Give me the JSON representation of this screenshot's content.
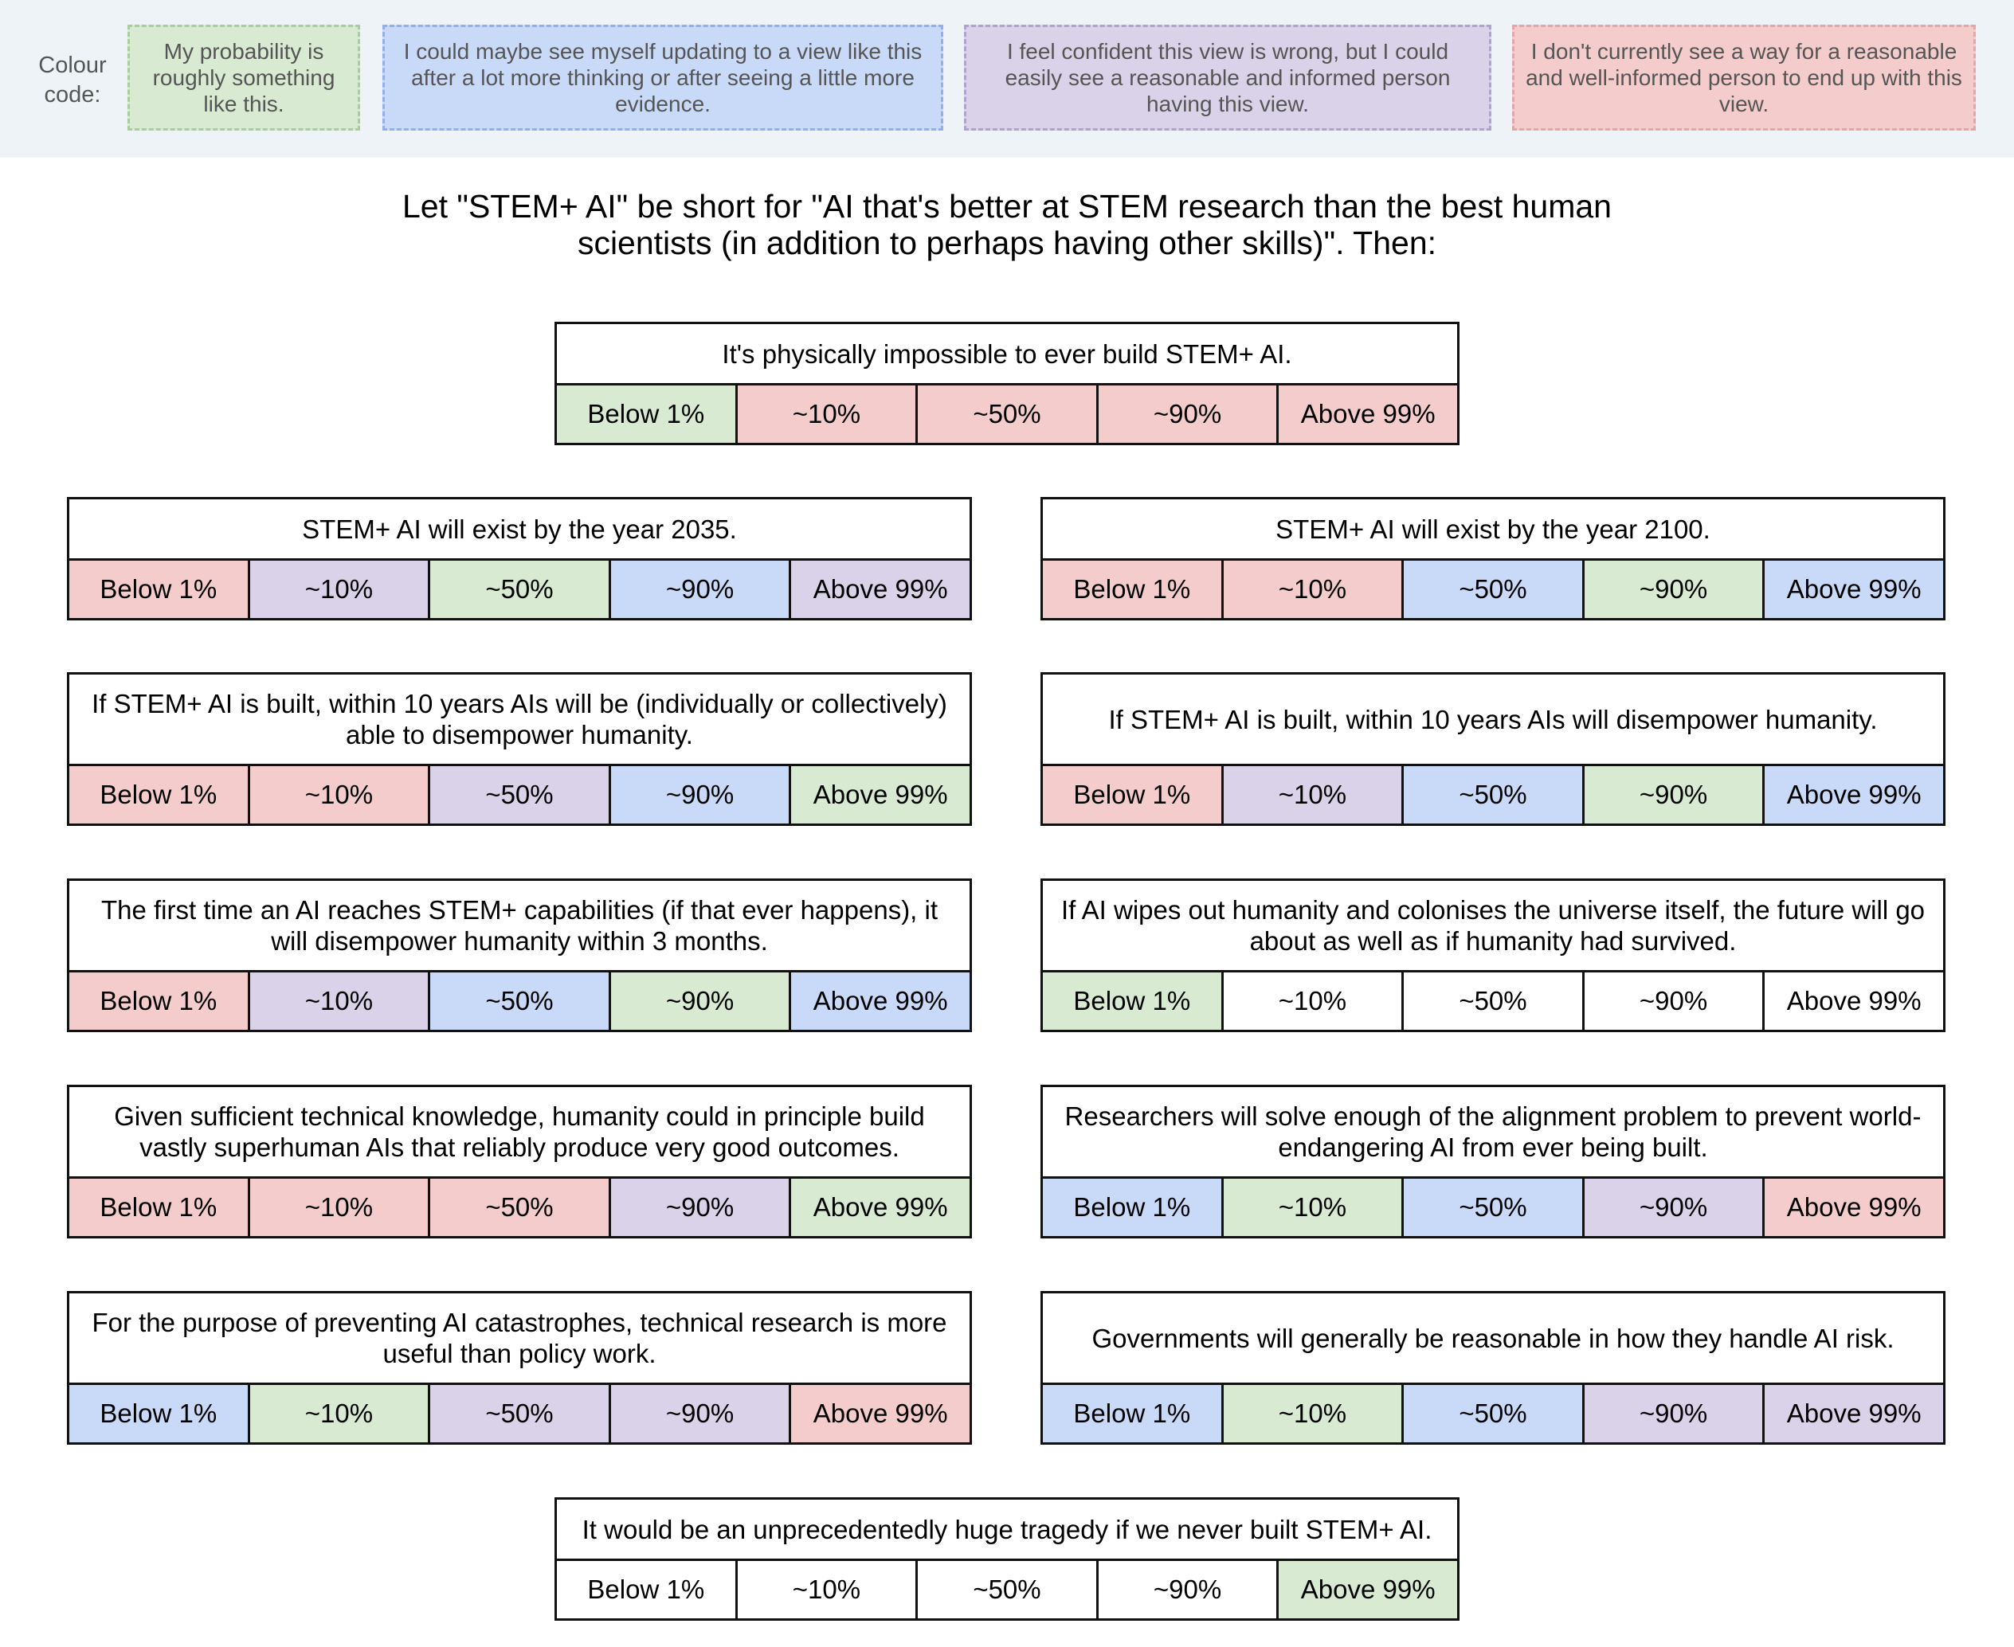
{
  "legend": {
    "title": "Colour code:",
    "items": [
      {
        "key": "green",
        "text": "My probability is roughly something like this."
      },
      {
        "key": "blue",
        "text": "I could maybe see myself updating to a view like this after a lot more thinking or after seeing a little more evidence."
      },
      {
        "key": "purple",
        "text": "I feel confident this view is wrong, but I could easily see a reasonable and informed person having this view."
      },
      {
        "key": "red",
        "text": "I don't currently see a way for a reasonable and well-informed person to end up with this view."
      }
    ]
  },
  "colors": {
    "green": "#d9ead3",
    "blue": "#c9daf8",
    "purple": "#d9d2e9",
    "red": "#f4cccc",
    "none": "#ffffff"
  },
  "intro": "Let \"STEM+ AI\" be short for \"AI that's better at STEM research than the best human scientists (in addition to perhaps having other skills)\". Then:",
  "options": [
    "Below 1%",
    "~10%",
    "~50%",
    "~90%",
    "Above 99%"
  ],
  "questions": [
    {
      "text": "It's physically impossible to ever build STEM+ AI.",
      "colors": [
        "green",
        "red",
        "red",
        "red",
        "red"
      ]
    },
    {
      "text": "STEM+ AI will exist by the year 2035.",
      "colors": [
        "red",
        "purple",
        "green",
        "blue",
        "purple"
      ]
    },
    {
      "text": "STEM+ AI will exist by the year 2100.",
      "colors": [
        "red",
        "red",
        "blue",
        "green",
        "blue"
      ]
    },
    {
      "text": "If STEM+ AI is built, within 10 years AIs will be (individually or collectively) able to disempower humanity.",
      "colors": [
        "red",
        "red",
        "purple",
        "blue",
        "green"
      ]
    },
    {
      "text": "If STEM+ AI is built, within 10 years AIs will disempower humanity.",
      "colors": [
        "red",
        "purple",
        "blue",
        "green",
        "blue"
      ]
    },
    {
      "text": "The first time an AI reaches STEM+ capabilities (if that ever happens), it will disempower humanity within 3 months.",
      "colors": [
        "red",
        "purple",
        "blue",
        "green",
        "blue"
      ]
    },
    {
      "text": "If AI wipes out humanity and colonises the universe itself, the future will go about as well as if humanity had survived.",
      "colors": [
        "green",
        "none",
        "none",
        "none",
        "none"
      ]
    },
    {
      "text": "Given sufficient technical knowledge, humanity could in principle build vastly superhuman AIs that reliably produce very good outcomes.",
      "colors": [
        "red",
        "red",
        "red",
        "purple",
        "green"
      ]
    },
    {
      "text": "Researchers will solve enough of the alignment problem to prevent world-endangering AI from ever being built.",
      "colors": [
        "blue",
        "green",
        "blue",
        "purple",
        "red"
      ]
    },
    {
      "text": "For the purpose of preventing AI catastrophes, technical research is more useful than policy work.",
      "colors": [
        "blue",
        "green",
        "purple",
        "purple",
        "red"
      ]
    },
    {
      "text": "Governments will generally be reasonable in how they handle AI risk.",
      "colors": [
        "blue",
        "green",
        "blue",
        "purple",
        "purple"
      ]
    },
    {
      "text": "It would be an unprecedentedly huge tragedy if we never built STEM+ AI.",
      "colors": [
        "none",
        "none",
        "none",
        "none",
        "green"
      ]
    }
  ]
}
